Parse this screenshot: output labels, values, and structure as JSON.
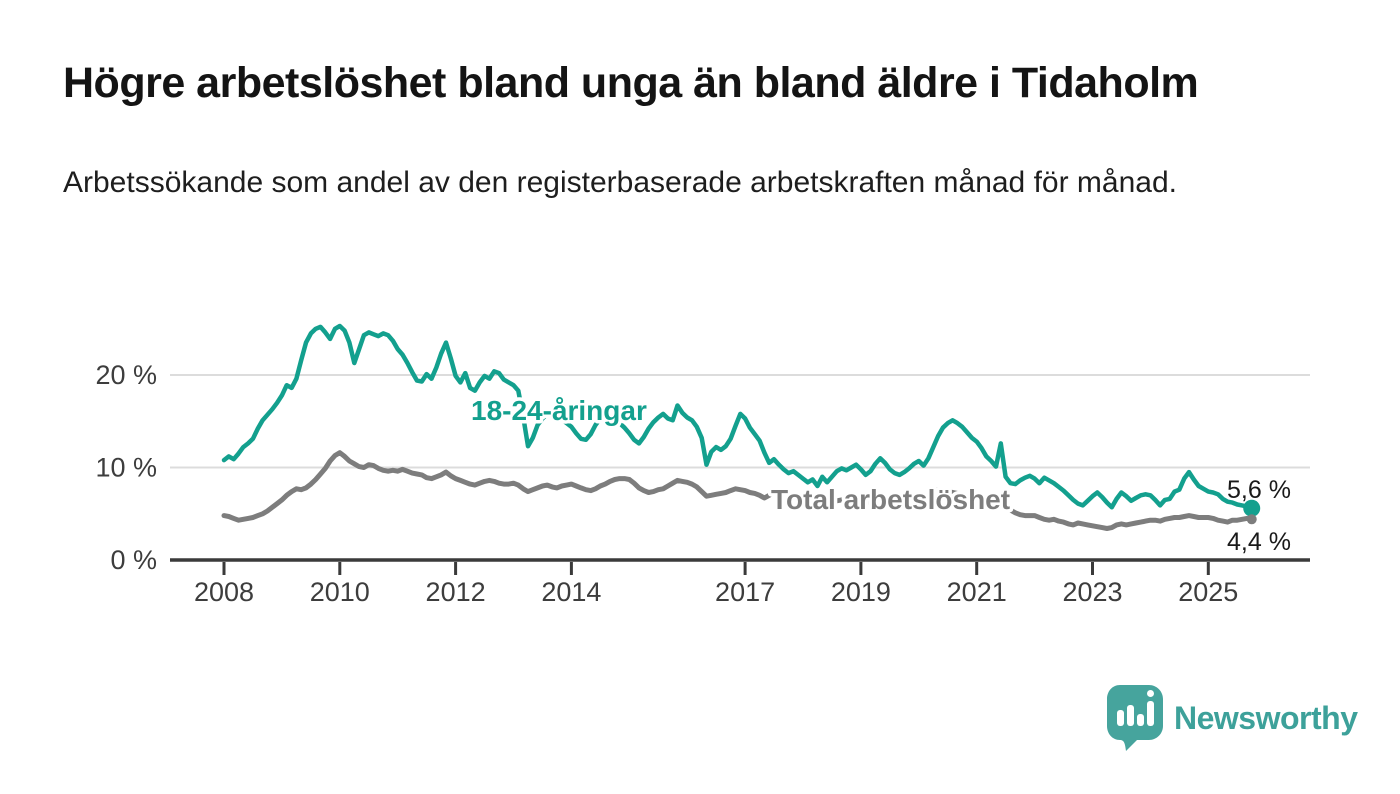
{
  "header": {
    "title": "Högre arbetslöshet bland unga än bland äldre i Tidaholm",
    "subtitle": "Arbetssökande som andel av den registerbaserade arbetskraften månad för månad."
  },
  "chart_data": {
    "type": "line",
    "title": "Högre arbetslöshet bland unga än bland äldre i Tidaholm",
    "xlabel": "",
    "ylabel": "",
    "x_start": 2008,
    "x_step_months": 1,
    "x_end_label": "2025",
    "ylim": [
      0,
      27
    ],
    "grid": "horizontal",
    "legend": "inline-labels",
    "y_ticks": [
      {
        "value": 0,
        "label": "0 %"
      },
      {
        "value": 10,
        "label": "10 %"
      },
      {
        "value": 20,
        "label": "20 %"
      }
    ],
    "x_ticks": [
      {
        "value": 2008,
        "label": "2008"
      },
      {
        "value": 2010,
        "label": "2010"
      },
      {
        "value": 2012,
        "label": "2012"
      },
      {
        "value": 2014,
        "label": "2014"
      },
      {
        "value": 2017,
        "label": "2017"
      },
      {
        "value": 2019,
        "label": "2019"
      },
      {
        "value": 2021,
        "label": "2021"
      },
      {
        "value": 2023,
        "label": "2023"
      },
      {
        "value": 2025,
        "label": "2025"
      }
    ],
    "series": [
      {
        "name": "18-24-åringar",
        "line_label": "18-24-åringar",
        "end_label": "5,6 %",
        "end_value": 5.6,
        "color": "#13a08e",
        "values": [
          10.8,
          11.2,
          10.9,
          11.5,
          12.2,
          12.6,
          13.1,
          14.2,
          15.1,
          15.7,
          16.3,
          17.0,
          17.8,
          18.9,
          18.6,
          19.6,
          21.6,
          23.5,
          24.5,
          25.0,
          25.2,
          24.6,
          23.9,
          25.0,
          25.3,
          24.8,
          23.5,
          21.3,
          22.8,
          24.3,
          24.6,
          24.4,
          24.2,
          24.5,
          24.3,
          23.7,
          22.8,
          22.2,
          21.3,
          20.3,
          19.4,
          19.3,
          20.1,
          19.6,
          20.8,
          22.3,
          23.5,
          21.8,
          19.9,
          19.2,
          20.2,
          18.6,
          18.3,
          19.2,
          19.9,
          19.6,
          20.4,
          20.2,
          19.5,
          19.2,
          18.9,
          18.3,
          15.5,
          12.3,
          13.2,
          14.6,
          15.3,
          15.8,
          15.9,
          15.6,
          15.2,
          14.8,
          14.4,
          13.7,
          13.1,
          13.0,
          13.6,
          14.6,
          15.3,
          15.7,
          15.6,
          15.2,
          14.8,
          14.3,
          13.7,
          13.0,
          12.6,
          13.3,
          14.2,
          14.9,
          15.4,
          15.8,
          15.3,
          15.1,
          16.7,
          15.9,
          15.4,
          15.1,
          14.4,
          13.2,
          10.3,
          11.7,
          12.2,
          11.9,
          12.3,
          13.1,
          14.5,
          15.8,
          15.3,
          14.3,
          13.6,
          12.9,
          11.6,
          10.5,
          10.9,
          10.3,
          9.8,
          9.4,
          9.6,
          9.2,
          8.8,
          8.4,
          8.7,
          8.0,
          9.0,
          8.4,
          9.0,
          9.6,
          9.9,
          9.7,
          10.0,
          10.3,
          9.8,
          9.2,
          9.6,
          10.4,
          11.0,
          10.5,
          9.8,
          9.4,
          9.2,
          9.5,
          9.9,
          10.4,
          10.7,
          10.2,
          11.0,
          12.2,
          13.4,
          14.3,
          14.8,
          15.1,
          14.8,
          14.4,
          13.8,
          13.2,
          12.8,
          12.1,
          11.2,
          10.7,
          10.1,
          12.6,
          9.0,
          8.3,
          8.2,
          8.6,
          8.9,
          9.1,
          8.8,
          8.3,
          8.9,
          8.6,
          8.3,
          7.9,
          7.5,
          7.0,
          6.5,
          6.1,
          5.9,
          6.4,
          6.9,
          7.3,
          6.8,
          6.2,
          5.7,
          6.6,
          7.3,
          6.9,
          6.4,
          6.7,
          7.0,
          7.1,
          7.0,
          6.5,
          5.9,
          6.5,
          6.6,
          7.4,
          7.6,
          8.8,
          9.5,
          8.7,
          8.0,
          7.7,
          7.4,
          7.3,
          7.1,
          6.6,
          6.3,
          6.2,
          6.0,
          5.9,
          5.8,
          5.6
        ]
      },
      {
        "name": "Total arbetslöshet",
        "line_label": "Total arbetslöshet",
        "end_label": "4,4 %",
        "end_value": 4.4,
        "color": "#7d7d7d",
        "values": [
          4.8,
          4.7,
          4.5,
          4.3,
          4.4,
          4.5,
          4.6,
          4.8,
          5.0,
          5.3,
          5.7,
          6.1,
          6.5,
          7.0,
          7.4,
          7.7,
          7.6,
          7.8,
          8.2,
          8.7,
          9.3,
          9.9,
          10.7,
          11.3,
          11.6,
          11.2,
          10.7,
          10.4,
          10.1,
          10.0,
          10.3,
          10.2,
          9.9,
          9.7,
          9.6,
          9.7,
          9.6,
          9.8,
          9.6,
          9.4,
          9.3,
          9.2,
          8.9,
          8.8,
          9.0,
          9.2,
          9.5,
          9.1,
          8.8,
          8.6,
          8.4,
          8.2,
          8.1,
          8.3,
          8.5,
          8.6,
          8.5,
          8.3,
          8.2,
          8.2,
          8.3,
          8.1,
          7.7,
          7.4,
          7.6,
          7.8,
          8.0,
          8.1,
          7.9,
          7.8,
          8.0,
          8.1,
          8.2,
          8.0,
          7.8,
          7.6,
          7.5,
          7.7,
          8.0,
          8.2,
          8.5,
          8.7,
          8.8,
          8.8,
          8.7,
          8.3,
          7.8,
          7.5,
          7.3,
          7.4,
          7.6,
          7.7,
          8.0,
          8.3,
          8.6,
          8.5,
          8.4,
          8.2,
          7.9,
          7.4,
          6.9,
          7.0,
          7.1,
          7.2,
          7.3,
          7.5,
          7.7,
          7.6,
          7.5,
          7.3,
          7.2,
          7.0,
          6.7,
          7.0,
          7.4,
          7.2,
          6.9,
          7.1,
          7.0,
          6.8,
          6.6,
          6.3,
          6.1,
          6.2,
          6.3,
          6.2,
          6.3,
          6.4,
          6.5,
          6.4,
          6.3,
          6.4,
          6.4,
          6.2,
          6.3,
          6.4,
          6.3,
          6.2,
          6.2,
          6.3,
          6.2,
          6.3,
          6.4,
          6.5,
          6.6,
          6.8,
          7.1,
          7.4,
          7.6,
          7.5,
          7.4,
          7.3,
          7.2,
          7.1,
          7.0,
          7.1,
          7.0,
          6.8,
          6.6,
          6.4,
          6.2,
          6.0,
          5.7,
          5.4,
          5.1,
          4.9,
          4.8,
          4.8,
          4.8,
          4.6,
          4.4,
          4.3,
          4.4,
          4.2,
          4.1,
          3.9,
          3.8,
          4.0,
          3.9,
          3.8,
          3.7,
          3.6,
          3.5,
          3.4,
          3.5,
          3.8,
          3.9,
          3.8,
          3.9,
          4.0,
          4.1,
          4.2,
          4.3,
          4.3,
          4.2,
          4.4,
          4.5,
          4.6,
          4.6,
          4.7,
          4.8,
          4.7,
          4.6,
          4.6,
          4.6,
          4.5,
          4.3,
          4.2,
          4.1,
          4.3,
          4.3,
          4.4,
          4.5,
          4.4
        ]
      }
    ]
  },
  "footer": {
    "brand": "Newsworthy",
    "logo_icon": "bar-chart-speech-bubble"
  },
  "colors": {
    "accent_teal": "#13a08e",
    "series_gray": "#7d7d7d",
    "logo_teal": "#46a49d",
    "logo_text_teal": "#3da19a",
    "axis": "#3a3a3a",
    "grid": "#dcdcdc",
    "tick_text": "#3d3d3d",
    "annotation_text": "#1a1a1a",
    "title_text": "#141414"
  }
}
